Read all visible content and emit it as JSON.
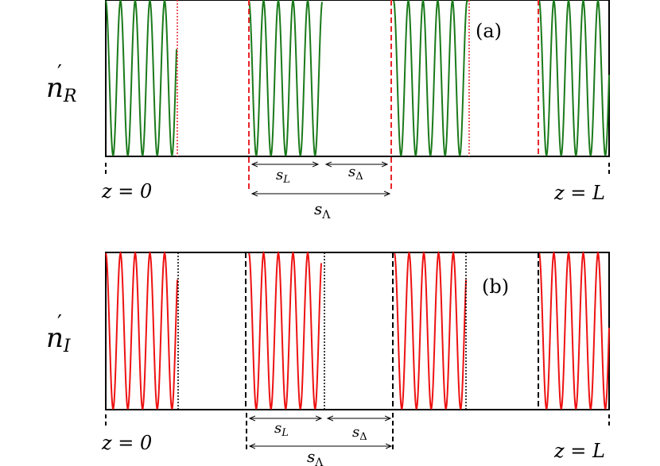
{
  "panels": [
    {
      "id": "a",
      "tag": "(a)",
      "ylabel_base": "n",
      "ylabel_prime": "′",
      "ylabel_sub": "R",
      "wave_color": "#1a7a1a",
      "marker_color": "#e8252a",
      "dim_labels": {
        "sL_base": "s",
        "sL_sub": "L",
        "sD_base": "s",
        "sD_sub": "Δ",
        "sA_base": "s",
        "sA_sub": "Λ"
      },
      "z_start": "z = 0",
      "z_end": "z = L"
    },
    {
      "id": "b",
      "tag": "(b)",
      "ylabel_base": "n",
      "ylabel_prime": "′",
      "ylabel_sub": "I",
      "wave_color": "#ee1111",
      "marker_color": "#000000",
      "dim_labels": {
        "sL_base": "s",
        "sL_sub": "L",
        "sD_base": "s",
        "sD_sub": "Δ",
        "sA_base": "s",
        "sA_sub": "Λ"
      },
      "z_start": "z = 0",
      "z_end": "z = L"
    }
  ]
}
